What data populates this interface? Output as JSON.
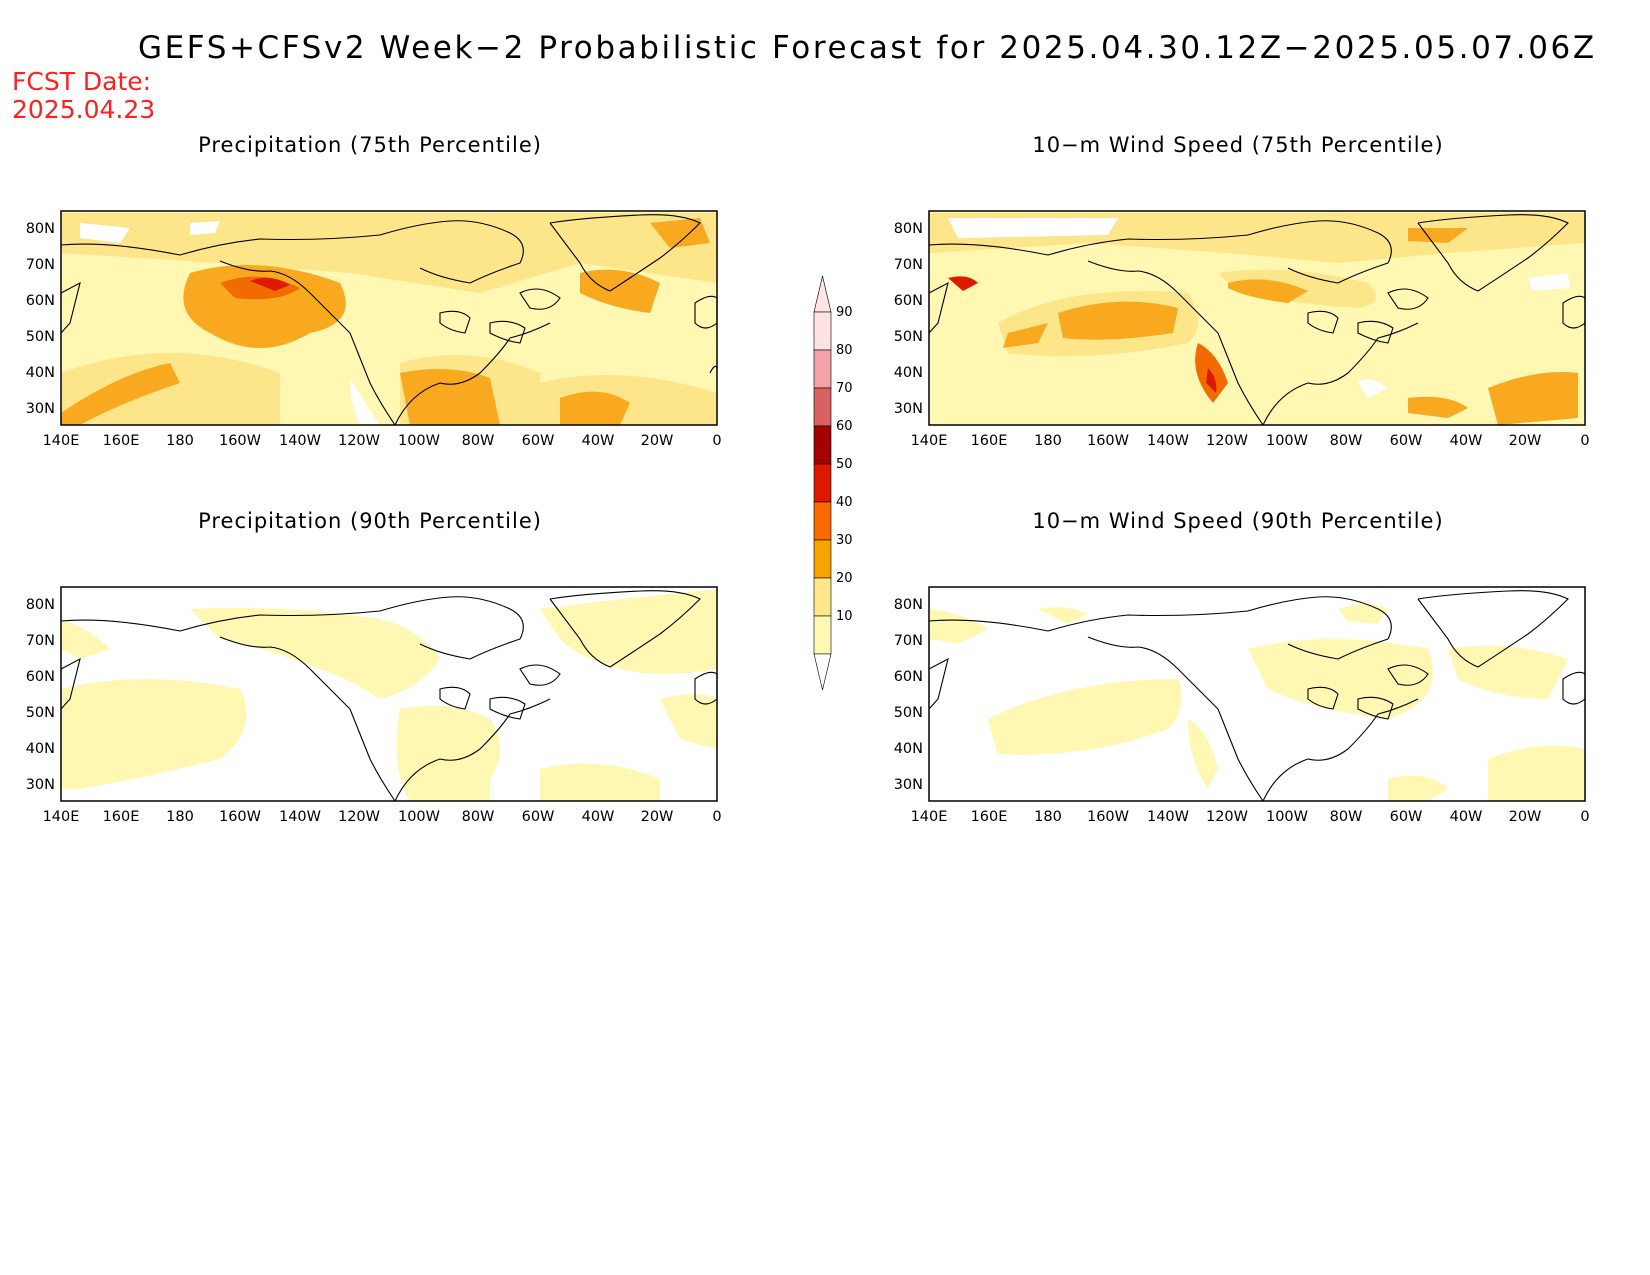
{
  "title": "GEFS+CFSv2 Week−2 Probabilistic Forecast for 2025.04.30.12Z−2025.05.07.06Z",
  "fcst_date": {
    "label": "FCST Date:",
    "value": "2025.04.23"
  },
  "lat_labels": [
    "80N",
    "70N",
    "60N",
    "50N",
    "40N",
    "30N"
  ],
  "lon_labels": [
    "140E",
    "160E",
    "180",
    "160W",
    "140W",
    "120W",
    "100W",
    "80W",
    "60W",
    "40W",
    "20W",
    "0"
  ],
  "panels": [
    {
      "title": "Precipitation (75th Percentile)",
      "variable": "precipitation",
      "percentile": 75
    },
    {
      "title": "10−m Wind Speed (75th Percentile)",
      "variable": "wind_speed_10m",
      "percentile": 75
    },
    {
      "title": "Precipitation (90th Percentile)",
      "variable": "precipitation",
      "percentile": 90
    },
    {
      "title": "10−m Wind Speed (90th Percentile)",
      "variable": "wind_speed_10m",
      "percentile": 90
    }
  ],
  "colorbar": {
    "labels": [
      "90",
      "80",
      "70",
      "60",
      "50",
      "40",
      "30",
      "20",
      "10"
    ],
    "colors": [
      "#fde3e3",
      "#f3a3a8",
      "#d86262",
      "#a30000",
      "#dd1a00",
      "#fb6a00",
      "#f7a400",
      "#fee68a",
      "#fff8b4"
    ]
  },
  "map_extent": {
    "lon_min": 140,
    "lon_max": 360,
    "lat_min": 25,
    "lat_max": 85
  }
}
